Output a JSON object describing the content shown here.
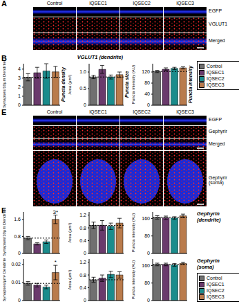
{
  "panels": [
    {
      "label": "A",
      "columns": [
        "Control",
        "IQSEC1",
        "IQSEC2",
        "IQSEC3"
      ],
      "rows": [
        "EGFP",
        "VGLUT1",
        "Merged"
      ]
    },
    {
      "label": "B"
    },
    {
      "label": "E",
      "columns": [
        "Control",
        "IQSEC1",
        "IQSEC2",
        "IQSEC3"
      ],
      "rows": [
        "EGFP",
        "Gephyrir",
        "Merged",
        "Gephyrir (soma)"
      ]
    },
    {
      "label": "F"
    }
  ],
  "chart_data": [
    {
      "type": "bar",
      "y_label": "Synapses/10μm Dendrite",
      "categories": [
        "Control",
        "IQSEC1",
        "IQSEC2",
        "IQSEC3"
      ],
      "colors": [
        "#707070",
        "#6a3a6c",
        "#1b8c8c",
        "#b97b4c"
      ],
      "values": [
        3.1,
        3.6,
        3.8,
        3.7
      ],
      "errors": [
        0.4,
        0.6,
        0.8,
        0.6
      ],
      "ylim": [
        0,
        4.6
      ],
      "yticks": [
        0,
        1,
        2,
        3,
        4
      ],
      "tick_labels": "y",
      "annotations": [
        {
          "text": "Puncta density"
        }
      ]
    },
    {
      "type": "bar",
      "title": "VGLUT1 (dendrite)",
      "y_label": "Area (μm²)",
      "categories": [
        "Control",
        "IQSEC1",
        "IQSEC2",
        "IQSEC3"
      ],
      "colors": [
        "#707070",
        "#6a3a6c",
        "#1b8c8c",
        "#b97b4c"
      ],
      "values": [
        0.85,
        1.08,
        0.85,
        0.92
      ],
      "errors": [
        0.05,
        0.12,
        0.06,
        0.08
      ],
      "ylim": [
        0,
        1.25
      ],
      "yticks": [
        0,
        0.5,
        {
          "value": 1,
          "label": "1.0"
        }
      ],
      "tick_labels": "y",
      "annotations": [
        {
          "text": "Puncta size"
        }
      ]
    },
    {
      "type": "bar",
      "y_label": "Puncta intensity (AU)",
      "categories": [
        "Control",
        "IQSEC1",
        "IQSEC2",
        "IQSEC3"
      ],
      "colors": [
        "#707070",
        "#6a3a6c",
        "#1b8c8c",
        "#b97b4c"
      ],
      "values": [
        122,
        130,
        133,
        135
      ],
      "errors": [
        4,
        5,
        4,
        4
      ],
      "ylim": [
        0,
        150
      ],
      "yticks": [
        0,
        40,
        80,
        120
      ],
      "tick_labels": "y",
      "legend": "right",
      "annotations": [
        {
          "text": "Puncta intensity"
        }
      ]
    },
    {
      "type": "bar",
      "y_label": "Synapses/10μm Dendrite",
      "categories": [
        "Control",
        "IQSEC1",
        "IQSEC2",
        "IQSEC3"
      ],
      "colors": [
        "#707070",
        "#6a3a6c",
        "#1b8c8c",
        "#b97b4c"
      ],
      "values": [
        0.72,
        0.45,
        0.55,
        1.6
      ],
      "errors": [
        0.08,
        0.05,
        0.08,
        0.2
      ],
      "ylim": [
        0,
        1.95
      ],
      "yticks": [
        0,
        0.4,
        0.8,
        1.2,
        1.6
      ],
      "tick_labels": "y",
      "annotations": [
        {
          "category": "IQSEC3",
          "text": "3*"
        }
      ]
    },
    {
      "type": "bar",
      "y_label": "Area (μm²)",
      "categories": [
        "Control",
        "IQSEC1",
        "IQSEC2",
        "IQSEC3"
      ],
      "colors": [
        "#707070",
        "#6a3a6c",
        "#1b8c8c",
        "#b97b4c"
      ],
      "values": [
        0.88,
        0.88,
        0.85,
        0.95
      ],
      "errors": [
        0.1,
        0.15,
        0.1,
        0.15
      ],
      "ylim": [
        0,
        1.3
      ],
      "yticks": [
        0,
        0.4,
        0.8,
        1.2
      ],
      "tick_labels": "y"
    },
    {
      "type": "bar",
      "title": "Gephyrin (dendrite)",
      "y_label": "Puncta intensity (AU)",
      "categories": [
        "Control",
        "IQSEC1",
        "IQSEC2",
        "IQSEC3"
      ],
      "colors": [
        "#707070",
        "#6a3a6c",
        "#1b8c8c",
        "#b97b4c"
      ],
      "values": [
        165,
        163,
        162,
        172
      ],
      "errors": [
        8,
        8,
        6,
        8
      ],
      "ylim": [
        0,
        190
      ],
      "yticks": [
        0,
        40,
        80,
        120,
        160
      ],
      "tick_labels": "y"
    },
    {
      "type": "bar",
      "y_label": "Synapses/μm² Dendrite",
      "categories": [
        "Control",
        "IQSEC1",
        "IQSEC2",
        "IQSEC3"
      ],
      "colors": [
        "#707070",
        "#6a3a6c",
        "#1b8c8c",
        "#b97b4c"
      ],
      "values": [
        0.0095,
        0.0085,
        0.0075,
        0.0155
      ],
      "errors": [
        0.001,
        0.001,
        0.001,
        0.004
      ],
      "ylim": [
        0,
        0.023
      ],
      "yticks": [
        0,
        0.01,
        0.02
      ],
      "tick_labels": "y",
      "annotations": [
        {
          "category": "IQSEC3",
          "text": "*"
        }
      ]
    },
    {
      "type": "bar",
      "y_label": "Area (μm²)",
      "categories": [
        "Control",
        "IQSEC1",
        "IQSEC2",
        "IQSEC3"
      ],
      "colors": [
        "#707070",
        "#6a3a6c",
        "#1b8c8c",
        "#b97b4c"
      ],
      "values": [
        0.65,
        0.7,
        0.82,
        0.8
      ],
      "errors": [
        0.08,
        0.1,
        0.1,
        0.1
      ],
      "ylim": [
        0,
        1.3
      ],
      "yticks": [
        0,
        0.4,
        0.8,
        1.2
      ],
      "tick_labels": "y"
    },
    {
      "type": "bar",
      "title": "Gephyrin (soma)",
      "y_label": "Puncta intensity (AU)",
      "categories": [
        "Control",
        "IQSEC1",
        "IQSEC2",
        "IQSEC3"
      ],
      "colors": [
        "#707070",
        "#6a3a6c",
        "#1b8c8c",
        "#b97b4c"
      ],
      "values": [
        165,
        165,
        163,
        170
      ],
      "errors": [
        6,
        6,
        6,
        5
      ],
      "ylim": [
        0,
        190
      ],
      "yticks": [
        0,
        40,
        80,
        120,
        160
      ],
      "tick_labels": "y",
      "legend": "right"
    }
  ]
}
